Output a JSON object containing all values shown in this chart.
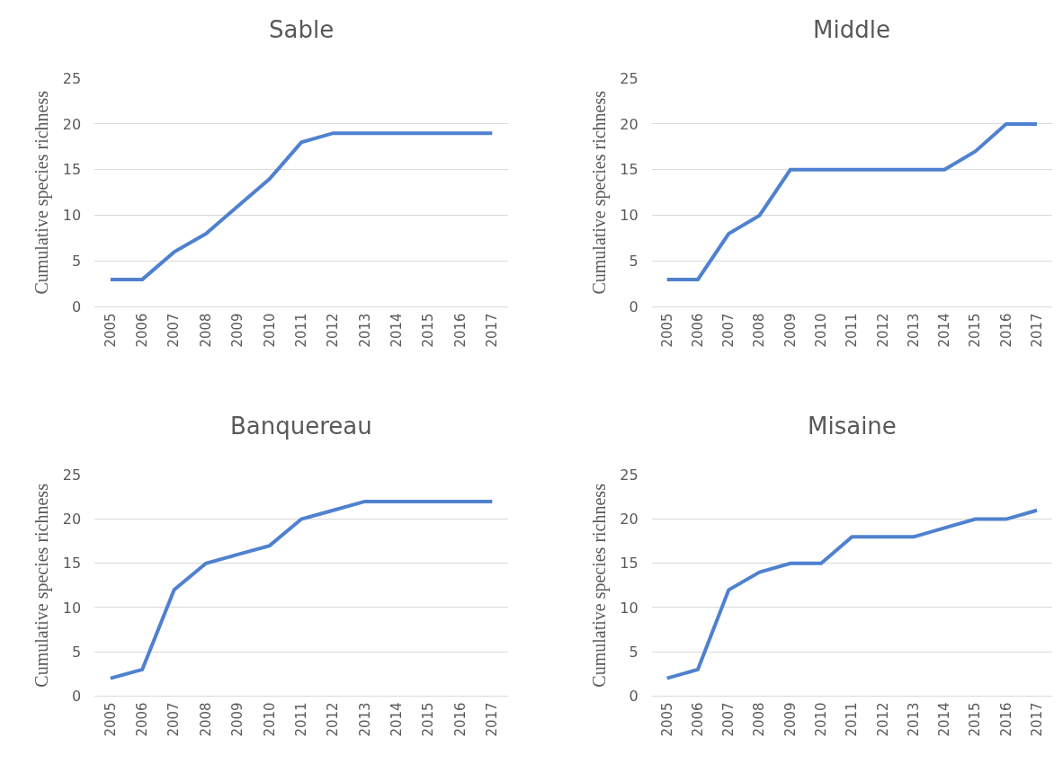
{
  "chart_data": [
    {
      "type": "line",
      "title": "Sable",
      "ylabel": "Cumulative species richness",
      "categories": [
        "2005",
        "2006",
        "2007",
        "2008",
        "2009",
        "2010",
        "2011",
        "2012",
        "2013",
        "2014",
        "2015",
        "2016",
        "2017"
      ],
      "series": [
        {
          "color": "#4f81cf",
          "values": [
            3,
            3,
            6,
            8,
            11,
            14,
            18,
            19,
            19,
            19,
            19,
            19,
            19
          ]
        }
      ],
      "ylim": [
        0,
        25
      ],
      "yticks": [
        0,
        5,
        10,
        15,
        20,
        25
      ],
      "grid": "y",
      "marker": "none",
      "line_style": "solid"
    },
    {
      "type": "line",
      "title": "Middle",
      "ylabel": "Cumulative species richness",
      "categories": [
        "2005",
        "2006",
        "2007",
        "2008",
        "2009",
        "2010",
        "2011",
        "2012",
        "2013",
        "2014",
        "2015",
        "2016",
        "2017"
      ],
      "series": [
        {
          "color": "#4f81cf",
          "values": [
            3,
            3,
            8,
            10,
            15,
            15,
            15,
            15,
            15,
            15,
            17,
            20,
            20
          ]
        }
      ],
      "ylim": [
        0,
        25
      ],
      "yticks": [
        0,
        5,
        10,
        15,
        20,
        25
      ],
      "grid": "y",
      "marker": "none",
      "line_style": "solid"
    },
    {
      "type": "line",
      "title": "Banquereau",
      "ylabel": "Cumulative species richness",
      "categories": [
        "2005",
        "2006",
        "2007",
        "2008",
        "2009",
        "2010",
        "2011",
        "2012",
        "2013",
        "2014",
        "2015",
        "2016",
        "2017"
      ],
      "series": [
        {
          "color": "#4f81cf",
          "values": [
            2,
            3,
            12,
            15,
            16,
            17,
            20,
            21,
            22,
            22,
            22,
            22,
            22
          ]
        }
      ],
      "ylim": [
        0,
        25
      ],
      "yticks": [
        0,
        5,
        10,
        15,
        20,
        25
      ],
      "grid": "y",
      "marker": "none",
      "line_style": "solid"
    },
    {
      "type": "line",
      "title": "Misaine",
      "ylabel": "Cumulative species richness",
      "categories": [
        "2005",
        "2006",
        "2007",
        "2008",
        "2009",
        "2010",
        "2011",
        "2012",
        "2013",
        "2014",
        "2015",
        "2016",
        "2017"
      ],
      "series": [
        {
          "color": "#4f81cf",
          "values": [
            2,
            3,
            12,
            14,
            15,
            15,
            18,
            18,
            18,
            19,
            20,
            20,
            21
          ]
        }
      ],
      "ylim": [
        0,
        25
      ],
      "yticks": [
        0,
        5,
        10,
        15,
        20,
        25
      ],
      "grid": "y",
      "marker": "none",
      "line_style": "solid"
    }
  ]
}
